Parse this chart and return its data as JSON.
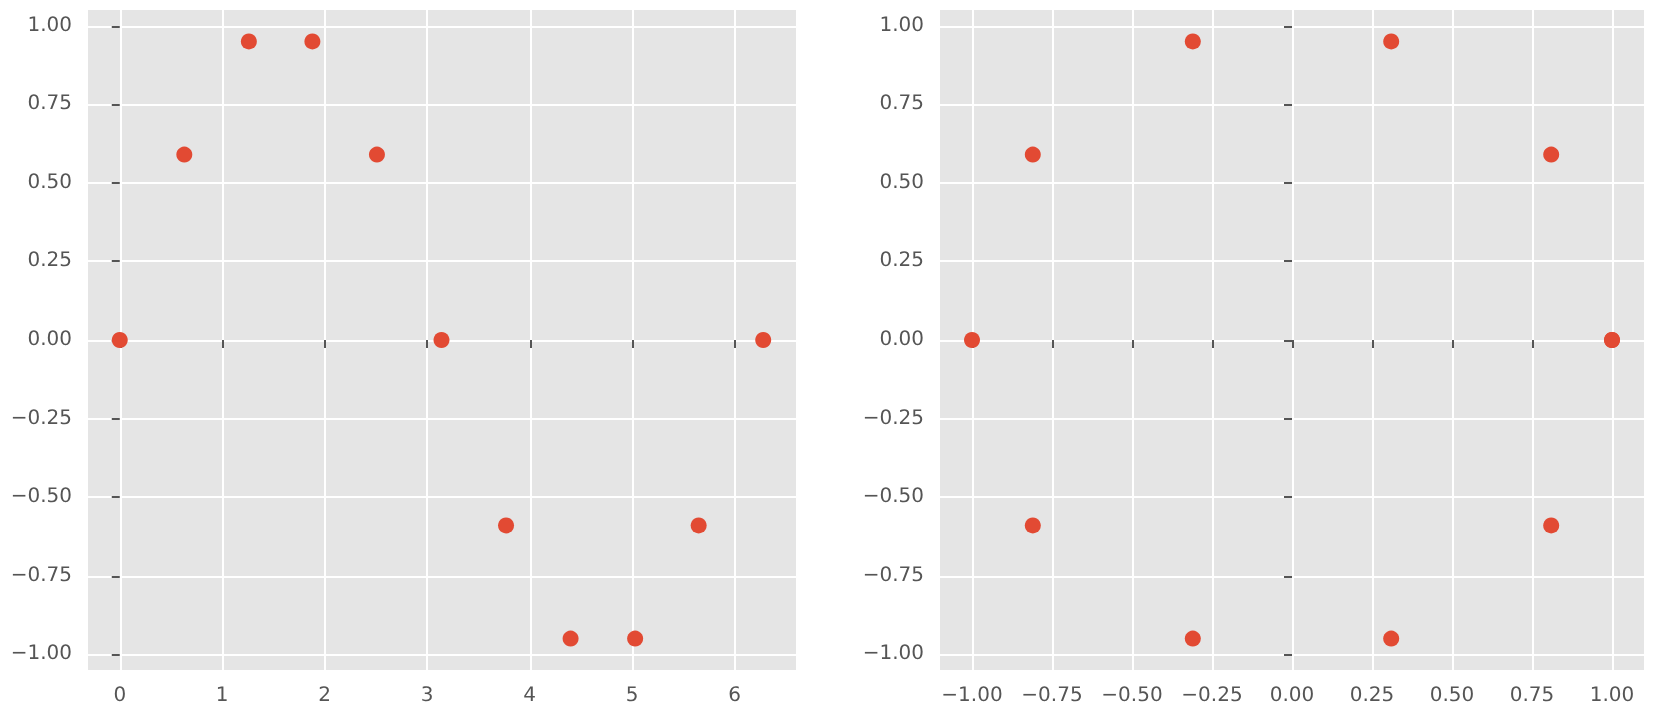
{
  "chart_data": [
    {
      "type": "scatter",
      "marker": "circle",
      "grid": true,
      "series": [
        {
          "color": "#e24a33",
          "x": [
            0,
            0.63,
            1.26,
            1.88,
            2.51,
            3.14,
            3.77,
            4.4,
            5.03,
            5.65,
            6.28
          ],
          "values": [
            0,
            0.59,
            0.95,
            0.95,
            0.59,
            0,
            -0.59,
            -0.95,
            -0.95,
            -0.59,
            0
          ]
        }
      ],
      "xlim": [
        -0.31,
        6.6
      ],
      "xticks": [
        0,
        1,
        2,
        3,
        4,
        5,
        6
      ],
      "ylim": [
        -1.05,
        1.05
      ],
      "yticks": [
        {
          "value": -1,
          "label": "−1.00"
        },
        {
          "value": -0.75,
          "label": "−0.75"
        },
        {
          "value": -0.5,
          "label": "−0.50"
        },
        {
          "value": -0.25,
          "label": "−0.25"
        },
        {
          "value": 0,
          "label": "0.00"
        },
        {
          "value": 0.25,
          "label": "0.25"
        },
        {
          "value": 0.5,
          "label": "0.50"
        },
        {
          "value": 0.75,
          "label": "0.75"
        },
        {
          "value": 1,
          "label": "1.00"
        }
      ]
    },
    {
      "type": "scatter",
      "marker": "circle",
      "grid": true,
      "series": [
        {
          "color": "#e24a33",
          "x": [
            1,
            0.81,
            0.31,
            -0.31,
            -0.81,
            -1,
            -0.81,
            -0.31,
            0.31,
            0.81,
            1
          ],
          "values": [
            0,
            0.59,
            0.95,
            0.95,
            0.59,
            0,
            -0.59,
            -0.95,
            -0.95,
            -0.59,
            0
          ]
        }
      ],
      "xlim": [
        -1.1,
        1.1
      ],
      "xticks": [
        {
          "value": -1,
          "label": "−1.00"
        },
        {
          "value": -0.75,
          "label": "−0.75"
        },
        {
          "value": -0.5,
          "label": "−0.50"
        },
        {
          "value": -0.25,
          "label": "−0.25"
        },
        {
          "value": 0,
          "label": "0.00"
        },
        {
          "value": 0.25,
          "label": "0.25"
        },
        {
          "value": 0.5,
          "label": "0.50"
        },
        {
          "value": 0.75,
          "label": "0.75"
        },
        {
          "value": 1,
          "label": "1.00"
        }
      ],
      "ylim": [
        -1.05,
        1.05
      ],
      "yticks": [
        {
          "value": -1,
          "label": "−1.00"
        },
        {
          "value": -0.75,
          "label": "−0.75"
        },
        {
          "value": -0.5,
          "label": "−0.50"
        },
        {
          "value": -0.25,
          "label": "−0.25"
        },
        {
          "value": 0,
          "label": "0.00"
        },
        {
          "value": 0.25,
          "label": "0.25"
        },
        {
          "value": 0.5,
          "label": "0.50"
        },
        {
          "value": 0.75,
          "label": "0.75"
        },
        {
          "value": 1,
          "label": "1.00"
        }
      ]
    }
  ]
}
